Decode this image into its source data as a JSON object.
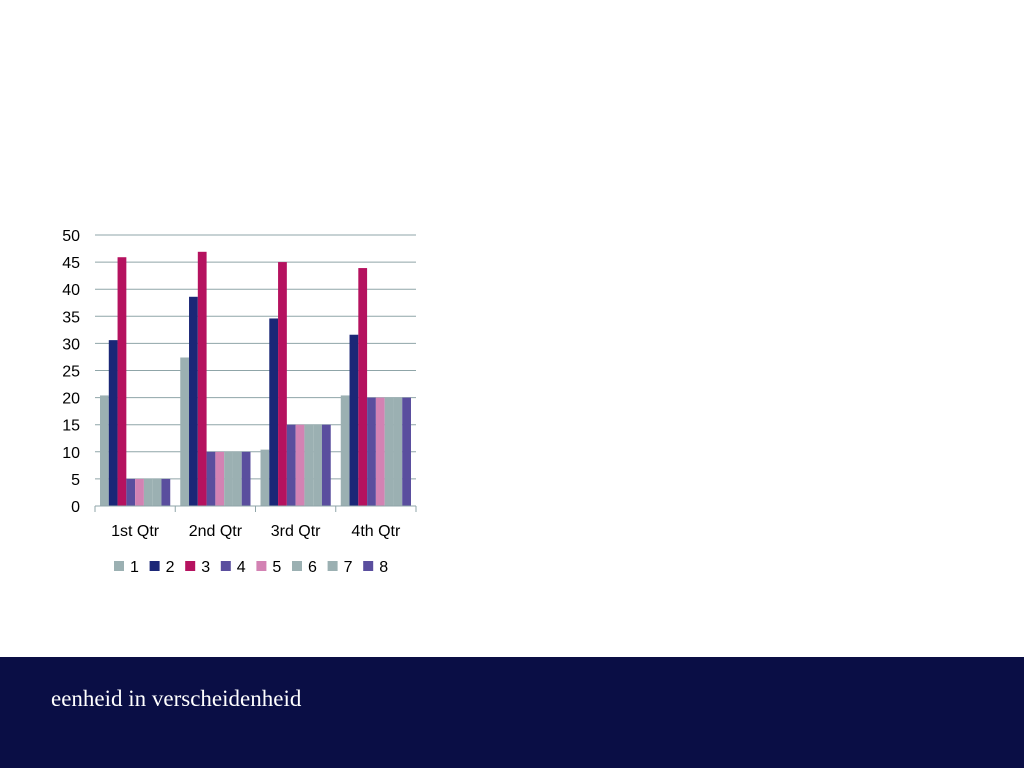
{
  "slide": {
    "footer_text": "eenheid in verscheidenheid"
  },
  "colors": {
    "footer_background": "#0a0e45",
    "gridline": "#8fa5a8",
    "axis": "#8fa5a8"
  },
  "chart_data": {
    "type": "bar",
    "categories": [
      "1st Qtr",
      "2nd Qtr",
      "3rd Qtr",
      "4th Qtr"
    ],
    "ylim": [
      0,
      50
    ],
    "yticks": [
      0,
      5,
      10,
      15,
      20,
      25,
      30,
      35,
      40,
      45,
      50
    ],
    "grid": true,
    "legend_position": "bottom",
    "series": [
      {
        "name": "1",
        "color": "#9bb0b2",
        "values": [
          20.4,
          27.4,
          10.4,
          20.4
        ]
      },
      {
        "name": "2",
        "color": "#1b2777",
        "values": [
          30.6,
          38.6,
          34.6,
          31.6
        ]
      },
      {
        "name": "3",
        "color": "#b5125f",
        "values": [
          45.9,
          46.9,
          45.0,
          43.9
        ]
      },
      {
        "name": "4",
        "color": "#5a4e9e",
        "values": [
          5,
          10,
          15,
          20
        ]
      },
      {
        "name": "5",
        "color": "#d382b3",
        "values": [
          5,
          10,
          15,
          20
        ]
      },
      {
        "name": "6",
        "color": "#9bb0b2",
        "values": [
          5,
          10,
          15,
          20
        ]
      },
      {
        "name": "7",
        "color": "#9bb0b2",
        "values": [
          5,
          10,
          15,
          20
        ]
      },
      {
        "name": "8",
        "color": "#5a4e9e",
        "values": [
          5,
          10,
          15,
          20
        ]
      }
    ]
  }
}
